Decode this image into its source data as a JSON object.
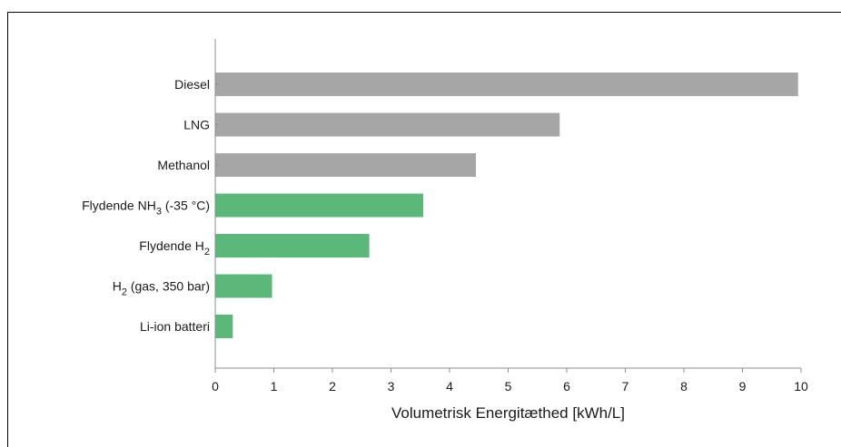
{
  "chart_data": {
    "type": "bar",
    "orientation": "horizontal",
    "title": "",
    "xlabel": "Volumetrisk Energitæthed [kWh/L]",
    "ylabel": "",
    "xlim": [
      0,
      10
    ],
    "x_ticks": [
      "0",
      "1",
      "2",
      "3",
      "4",
      "5",
      "6",
      "7",
      "8",
      "9",
      "10"
    ],
    "grid": false,
    "categories": [
      {
        "base": "Diesel",
        "sub": "",
        "after": ""
      },
      {
        "base": "LNG",
        "sub": "",
        "after": ""
      },
      {
        "base": "Methanol",
        "sub": "",
        "after": ""
      },
      {
        "base": "Flydende NH",
        "sub": "3",
        "after": " (-35 °C)"
      },
      {
        "base": "Flydende H",
        "sub": "2",
        "after": ""
      },
      {
        "base": "H",
        "sub": "2",
        "after": " (gas, 350 bar)"
      },
      {
        "base": "Li-ion batteri",
        "sub": "",
        "after": ""
      }
    ],
    "values": [
      9.95,
      5.88,
      4.45,
      3.55,
      2.63,
      0.97,
      0.3
    ],
    "colors": [
      "#a6a6a6",
      "#a6a6a6",
      "#a6a6a6",
      "#5cb87a",
      "#5cb87a",
      "#5cb87a",
      "#5cb87a"
    ]
  }
}
